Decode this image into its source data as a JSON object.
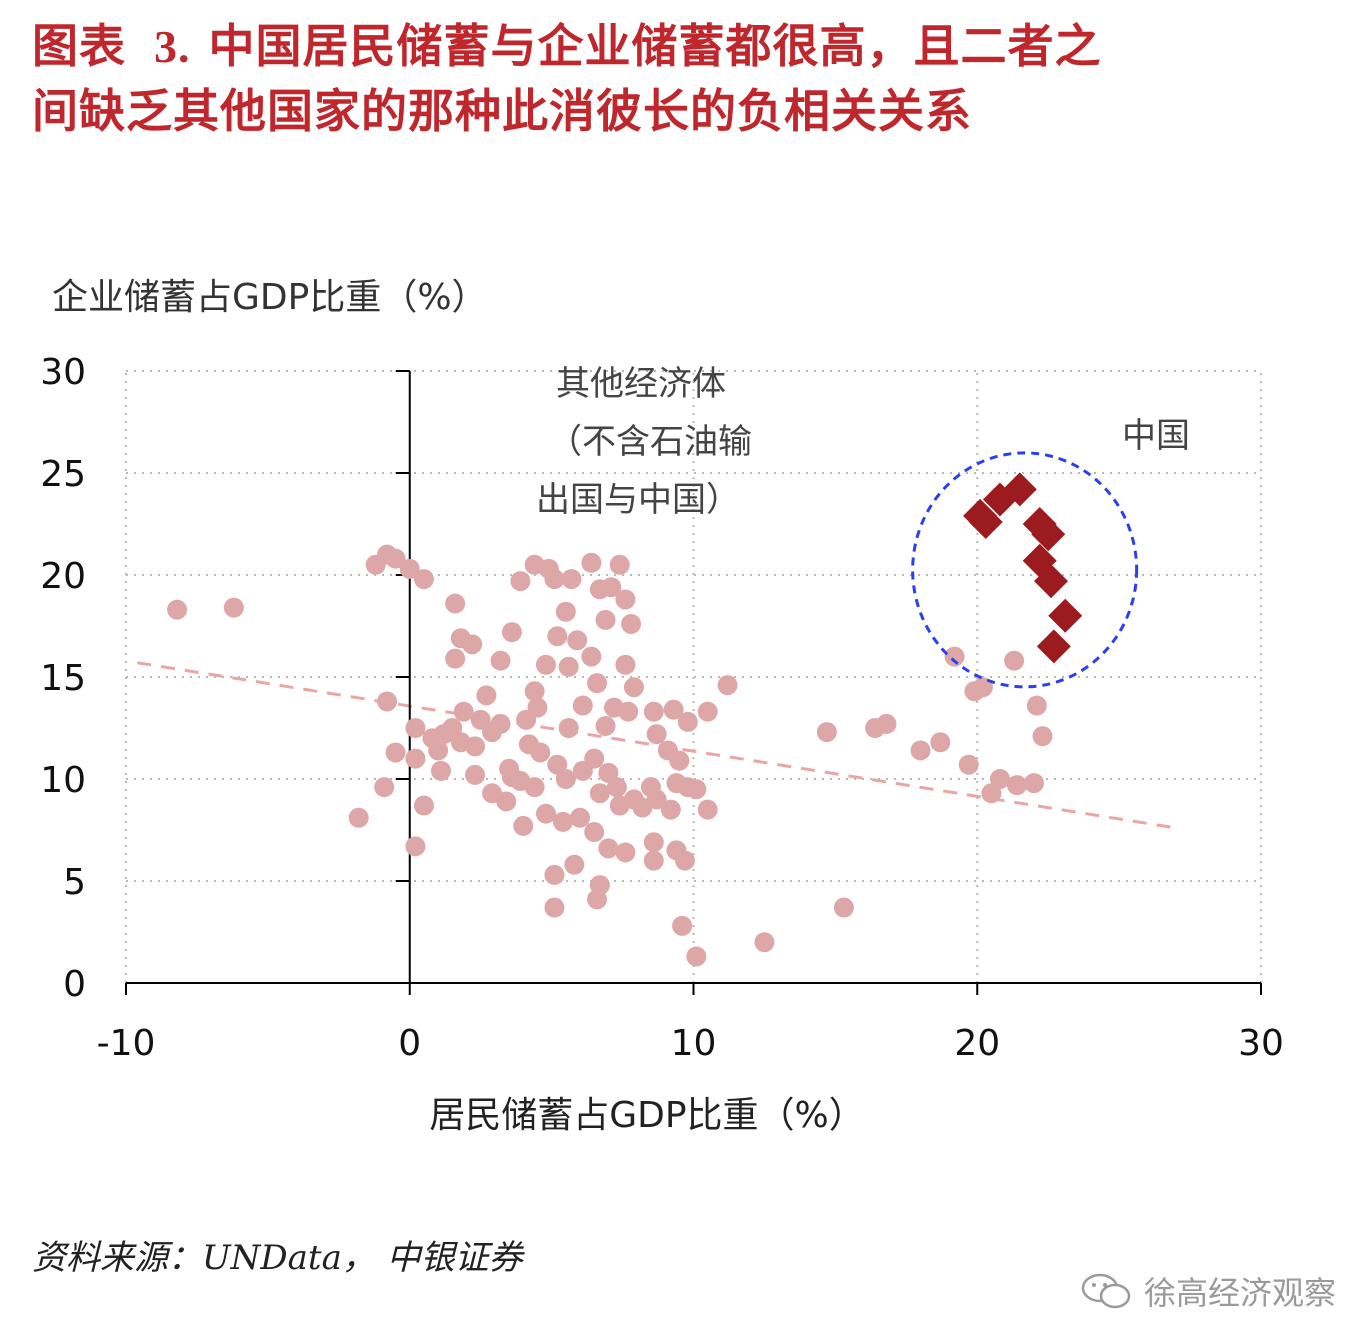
{
  "title": {
    "line1_prefix": "图表",
    "number": "3.",
    "line1_rest": "中国居民储蓄与企业储蓄都很高，且二者之",
    "line2": "间缺乏其他国家的那种此消彼长的负相关关系"
  },
  "source": "资料来源：UNData， 中银证券",
  "watermark": "徐高经济观察",
  "chart_data": {
    "type": "scatter",
    "title": "",
    "xlabel": "居民储蓄占GDP比重（%）",
    "ylabel": "企业储蓄占GDP比重（%）",
    "xlim": [
      -10,
      30
    ],
    "ylim": [
      0,
      30
    ],
    "xticks": [
      "-10",
      "0",
      "10",
      "20",
      "30"
    ],
    "yticks": [
      "0",
      "5",
      "10",
      "15",
      "20",
      "25",
      "30"
    ],
    "grid": true,
    "annotations": {
      "others": [
        "其他经济体",
        "（不含石油输",
        "出国与中国）"
      ],
      "china": "中国"
    },
    "colors": {
      "others": "#dea7a7",
      "china": "#9b1b1f",
      "trend": "#e8a6a6",
      "circle": "#2a3ff0"
    },
    "trendline": {
      "x": [
        -9.6,
        27
      ],
      "y": [
        15.7,
        7.6
      ]
    },
    "series": [
      {
        "name": "其他经济体（不含石油输出国与中国）",
        "marker": "circle",
        "points": [
          [
            -8.2,
            18.3
          ],
          [
            -6.2,
            18.4
          ],
          [
            -1.2,
            20.5
          ],
          [
            -0.8,
            21.0
          ],
          [
            -0.5,
            20.8
          ],
          [
            0.0,
            20.3
          ],
          [
            0.5,
            19.8
          ],
          [
            -0.8,
            13.8
          ],
          [
            0.2,
            12.5
          ],
          [
            -0.5,
            11.3
          ],
          [
            0.2,
            11.0
          ],
          [
            0.8,
            12.0
          ],
          [
            1.0,
            11.4
          ],
          [
            1.5,
            12.5
          ],
          [
            1.1,
            10.4
          ],
          [
            -0.9,
            9.6
          ],
          [
            0.5,
            8.7
          ],
          [
            -1.8,
            8.1
          ],
          [
            0.2,
            6.7
          ],
          [
            1.2,
            12.2
          ],
          [
            1.8,
            11.8
          ],
          [
            1.6,
            18.6
          ],
          [
            1.8,
            16.9
          ],
          [
            1.6,
            15.9
          ],
          [
            2.2,
            16.6
          ],
          [
            3.2,
            15.8
          ],
          [
            2.7,
            14.1
          ],
          [
            1.9,
            13.3
          ],
          [
            2.5,
            12.9
          ],
          [
            2.9,
            12.3
          ],
          [
            2.3,
            11.6
          ],
          [
            2.3,
            10.2
          ],
          [
            2.9,
            9.3
          ],
          [
            3.4,
            8.9
          ],
          [
            4.0,
            7.7
          ],
          [
            3.5,
            10.5
          ],
          [
            3.2,
            12.7
          ],
          [
            4.1,
            12.9
          ],
          [
            4.4,
            14.3
          ],
          [
            3.6,
            17.2
          ],
          [
            3.9,
            19.7
          ],
          [
            4.4,
            20.5
          ],
          [
            4.8,
            15.6
          ],
          [
            5.2,
            17.0
          ],
          [
            5.5,
            18.2
          ],
          [
            5.1,
            19.8
          ],
          [
            4.9,
            20.3
          ],
          [
            5.7,
            19.8
          ],
          [
            6.4,
            20.6
          ],
          [
            6.7,
            19.3
          ],
          [
            7.1,
            19.4
          ],
          [
            7.4,
            20.5
          ],
          [
            6.9,
            17.8
          ],
          [
            7.6,
            18.8
          ],
          [
            7.8,
            17.6
          ],
          [
            6.4,
            16.0
          ],
          [
            5.6,
            15.5
          ],
          [
            5.9,
            16.8
          ],
          [
            7.6,
            15.6
          ],
          [
            7.9,
            14.5
          ],
          [
            6.6,
            14.7
          ],
          [
            6.1,
            13.6
          ],
          [
            7.2,
            13.5
          ],
          [
            7.7,
            13.3
          ],
          [
            6.9,
            12.6
          ],
          [
            5.6,
            12.5
          ],
          [
            4.5,
            13.5
          ],
          [
            4.2,
            11.7
          ],
          [
            4.6,
            11.3
          ],
          [
            5.2,
            10.7
          ],
          [
            5.5,
            10.0
          ],
          [
            6.1,
            10.4
          ],
          [
            6.5,
            11.0
          ],
          [
            6.7,
            9.3
          ],
          [
            7.0,
            10.3
          ],
          [
            7.3,
            9.6
          ],
          [
            7.4,
            8.7
          ],
          [
            7.9,
            9.0
          ],
          [
            8.2,
            8.6
          ],
          [
            8.5,
            9.6
          ],
          [
            8.7,
            9.0
          ],
          [
            9.2,
            8.5
          ],
          [
            9.4,
            9.8
          ],
          [
            9.8,
            9.6
          ],
          [
            10.1,
            9.5
          ],
          [
            10.5,
            8.5
          ],
          [
            9.5,
            10.9
          ],
          [
            9.1,
            11.4
          ],
          [
            8.7,
            12.2
          ],
          [
            8.6,
            13.3
          ],
          [
            9.3,
            13.4
          ],
          [
            9.8,
            12.8
          ],
          [
            10.5,
            13.3
          ],
          [
            11.2,
            14.6
          ],
          [
            8.6,
            6.9
          ],
          [
            9.4,
            6.5
          ],
          [
            9.7,
            6.0
          ],
          [
            8.6,
            6.0
          ],
          [
            7.6,
            6.4
          ],
          [
            7.0,
            6.6
          ],
          [
            6.5,
            7.4
          ],
          [
            6.0,
            8.1
          ],
          [
            5.4,
            7.9
          ],
          [
            4.8,
            8.3
          ],
          [
            4.4,
            9.6
          ],
          [
            3.9,
            9.9
          ],
          [
            3.6,
            10.1
          ],
          [
            5.8,
            5.8
          ],
          [
            5.1,
            5.3
          ],
          [
            6.7,
            4.8
          ],
          [
            6.6,
            4.1
          ],
          [
            5.1,
            3.7
          ],
          [
            9.6,
            2.8
          ],
          [
            10.1,
            1.3
          ],
          [
            12.5,
            2.0
          ],
          [
            15.3,
            3.7
          ],
          [
            14.7,
            12.3
          ],
          [
            16.4,
            12.5
          ],
          [
            16.8,
            12.7
          ],
          [
            18.0,
            11.4
          ],
          [
            18.7,
            11.8
          ],
          [
            19.2,
            16.0
          ],
          [
            19.9,
            14.3
          ],
          [
            20.2,
            14.5
          ],
          [
            21.3,
            15.8
          ],
          [
            22.1,
            13.6
          ],
          [
            22.3,
            12.1
          ],
          [
            19.7,
            10.7
          ],
          [
            20.8,
            10.0
          ],
          [
            21.4,
            9.7
          ],
          [
            22.0,
            9.8
          ],
          [
            20.5,
            9.3
          ]
        ]
      },
      {
        "name": "中国",
        "marker": "diamond",
        "points": [
          [
            20.1,
            22.9
          ],
          [
            20.3,
            22.6
          ],
          [
            20.8,
            23.7
          ],
          [
            21.5,
            24.2
          ],
          [
            22.2,
            22.5
          ],
          [
            22.5,
            22.0
          ],
          [
            22.2,
            20.7
          ],
          [
            22.6,
            19.7
          ],
          [
            23.1,
            18.0
          ],
          [
            22.7,
            16.5
          ]
        ]
      }
    ]
  }
}
